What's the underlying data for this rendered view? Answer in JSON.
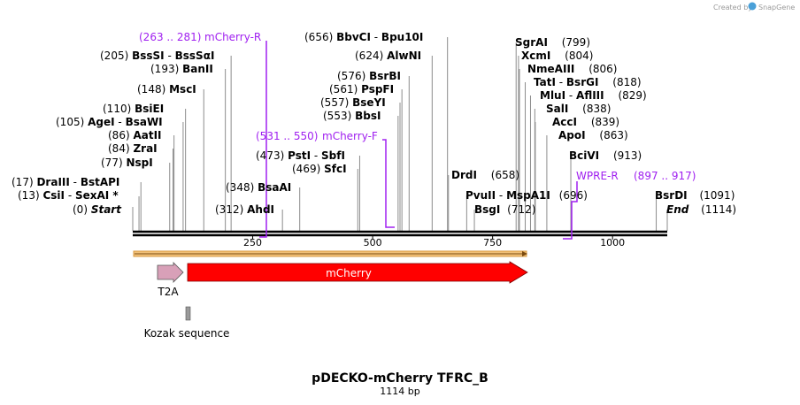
{
  "credit": {
    "text": "Created by",
    "brand": "SnapGene"
  },
  "map": {
    "title": "pDECKO-mCherry TFRC_B",
    "subtitle": "1114 bp",
    "length": 1114
  },
  "ruler": {
    "ticks": [
      250,
      500,
      750,
      1000
    ]
  },
  "sites": [
    {
      "name": "Start",
      "pos": 0,
      "label": "(0)",
      "italic": true
    },
    {
      "name": "CsiI",
      "pos": 13,
      "label": "(13)"
    },
    {
      "name": "SexAI *",
      "pos": 13,
      "label": ""
    },
    {
      "name": "DraIII",
      "pos": 17,
      "label": "(17)"
    },
    {
      "name": "BstAPI",
      "pos": 17,
      "label": ""
    },
    {
      "name": "NspI",
      "pos": 77,
      "label": "(77)"
    },
    {
      "name": "ZraI",
      "pos": 84,
      "label": "(84)"
    },
    {
      "name": "AatII",
      "pos": 86,
      "label": "(86)"
    },
    {
      "name": "AgeI",
      "pos": 105,
      "label": "(105)"
    },
    {
      "name": "BsaWI",
      "pos": 105,
      "label": ""
    },
    {
      "name": "BsiEI",
      "pos": 110,
      "label": "(110)"
    },
    {
      "name": "MscI",
      "pos": 148,
      "label": "(148)"
    },
    {
      "name": "BanII",
      "pos": 193,
      "label": "(193)"
    },
    {
      "name": "BssSI",
      "pos": 205,
      "label": "(205)"
    },
    {
      "name": "BssSαI",
      "pos": 205,
      "label": ""
    },
    {
      "name": "AhdI",
      "pos": 312,
      "label": "(312)"
    },
    {
      "name": "BsaAI",
      "pos": 348,
      "label": "(348)"
    },
    {
      "name": "SfcI",
      "pos": 469,
      "label": "(469)"
    },
    {
      "name": "PstI",
      "pos": 473,
      "label": "(473)"
    },
    {
      "name": "SbfI",
      "pos": 473,
      "label": ""
    },
    {
      "name": "BbsI",
      "pos": 553,
      "label": "(553)"
    },
    {
      "name": "BseYI",
      "pos": 557,
      "label": "(557)"
    },
    {
      "name": "PspFI",
      "pos": 561,
      "label": "(561)"
    },
    {
      "name": "BsrBI",
      "pos": 576,
      "label": "(576)"
    },
    {
      "name": "AlwNI",
      "pos": 624,
      "label": "(624)"
    },
    {
      "name": "BbvCI",
      "pos": 656,
      "label": "(656)"
    },
    {
      "name": "Bpu10I",
      "pos": 656,
      "label": ""
    },
    {
      "name": "DrdI",
      "pos": 658,
      "label": "(658)"
    },
    {
      "name": "PvuII",
      "pos": 696,
      "label": ""
    },
    {
      "name": "MspA1I",
      "pos": 696,
      "label": "(696)"
    },
    {
      "name": "BsgI",
      "pos": 712,
      "label": "(712)"
    },
    {
      "name": "SgrAI",
      "pos": 799,
      "label": "(799)"
    },
    {
      "name": "XcmI",
      "pos": 804,
      "label": "(804)"
    },
    {
      "name": "NmeAIII",
      "pos": 806,
      "label": "(806)"
    },
    {
      "name": "TatI",
      "pos": 818,
      "label": "(818)"
    },
    {
      "name": "BsrGI",
      "pos": 818,
      "label": ""
    },
    {
      "name": "MluI",
      "pos": 829,
      "label": "(829)"
    },
    {
      "name": "AflIII",
      "pos": 829,
      "label": ""
    },
    {
      "name": "SalI",
      "pos": 838,
      "label": "(838)"
    },
    {
      "name": "AccI",
      "pos": 839,
      "label": "(839)"
    },
    {
      "name": "ApoI",
      "pos": 863,
      "label": "(863)"
    },
    {
      "name": "BciVI",
      "pos": 913,
      "label": "(913)"
    },
    {
      "name": "BsrDI",
      "pos": 1091,
      "label": "(1091)"
    },
    {
      "name": "End",
      "pos": 1114,
      "label": "(1114)",
      "italic": true
    }
  ],
  "primers": [
    {
      "name": "mCherry-R",
      "range": "(263 .. 281)",
      "start": 263,
      "end": 281,
      "direction": "reverse"
    },
    {
      "name": "mCherry-F",
      "range": "(531 .. 550)",
      "start": 531,
      "end": 550,
      "direction": "forward"
    },
    {
      "name": "WPRE-R",
      "range": "(897 .. 917)",
      "start": 897,
      "end": 917,
      "direction": "reverse"
    }
  ],
  "features": [
    {
      "name": "T2A",
      "color": "#d8a0b8",
      "start": 13,
      "end": 82
    },
    {
      "name": "mCherry",
      "color": "#ff0000",
      "start": 82,
      "end": 793
    },
    {
      "name": "Kozak sequence",
      "color": "#9a9a9a",
      "start": 83,
      "end": 93
    }
  ],
  "orf": {
    "start": 0,
    "end": 793,
    "color": "#f2c27a"
  }
}
